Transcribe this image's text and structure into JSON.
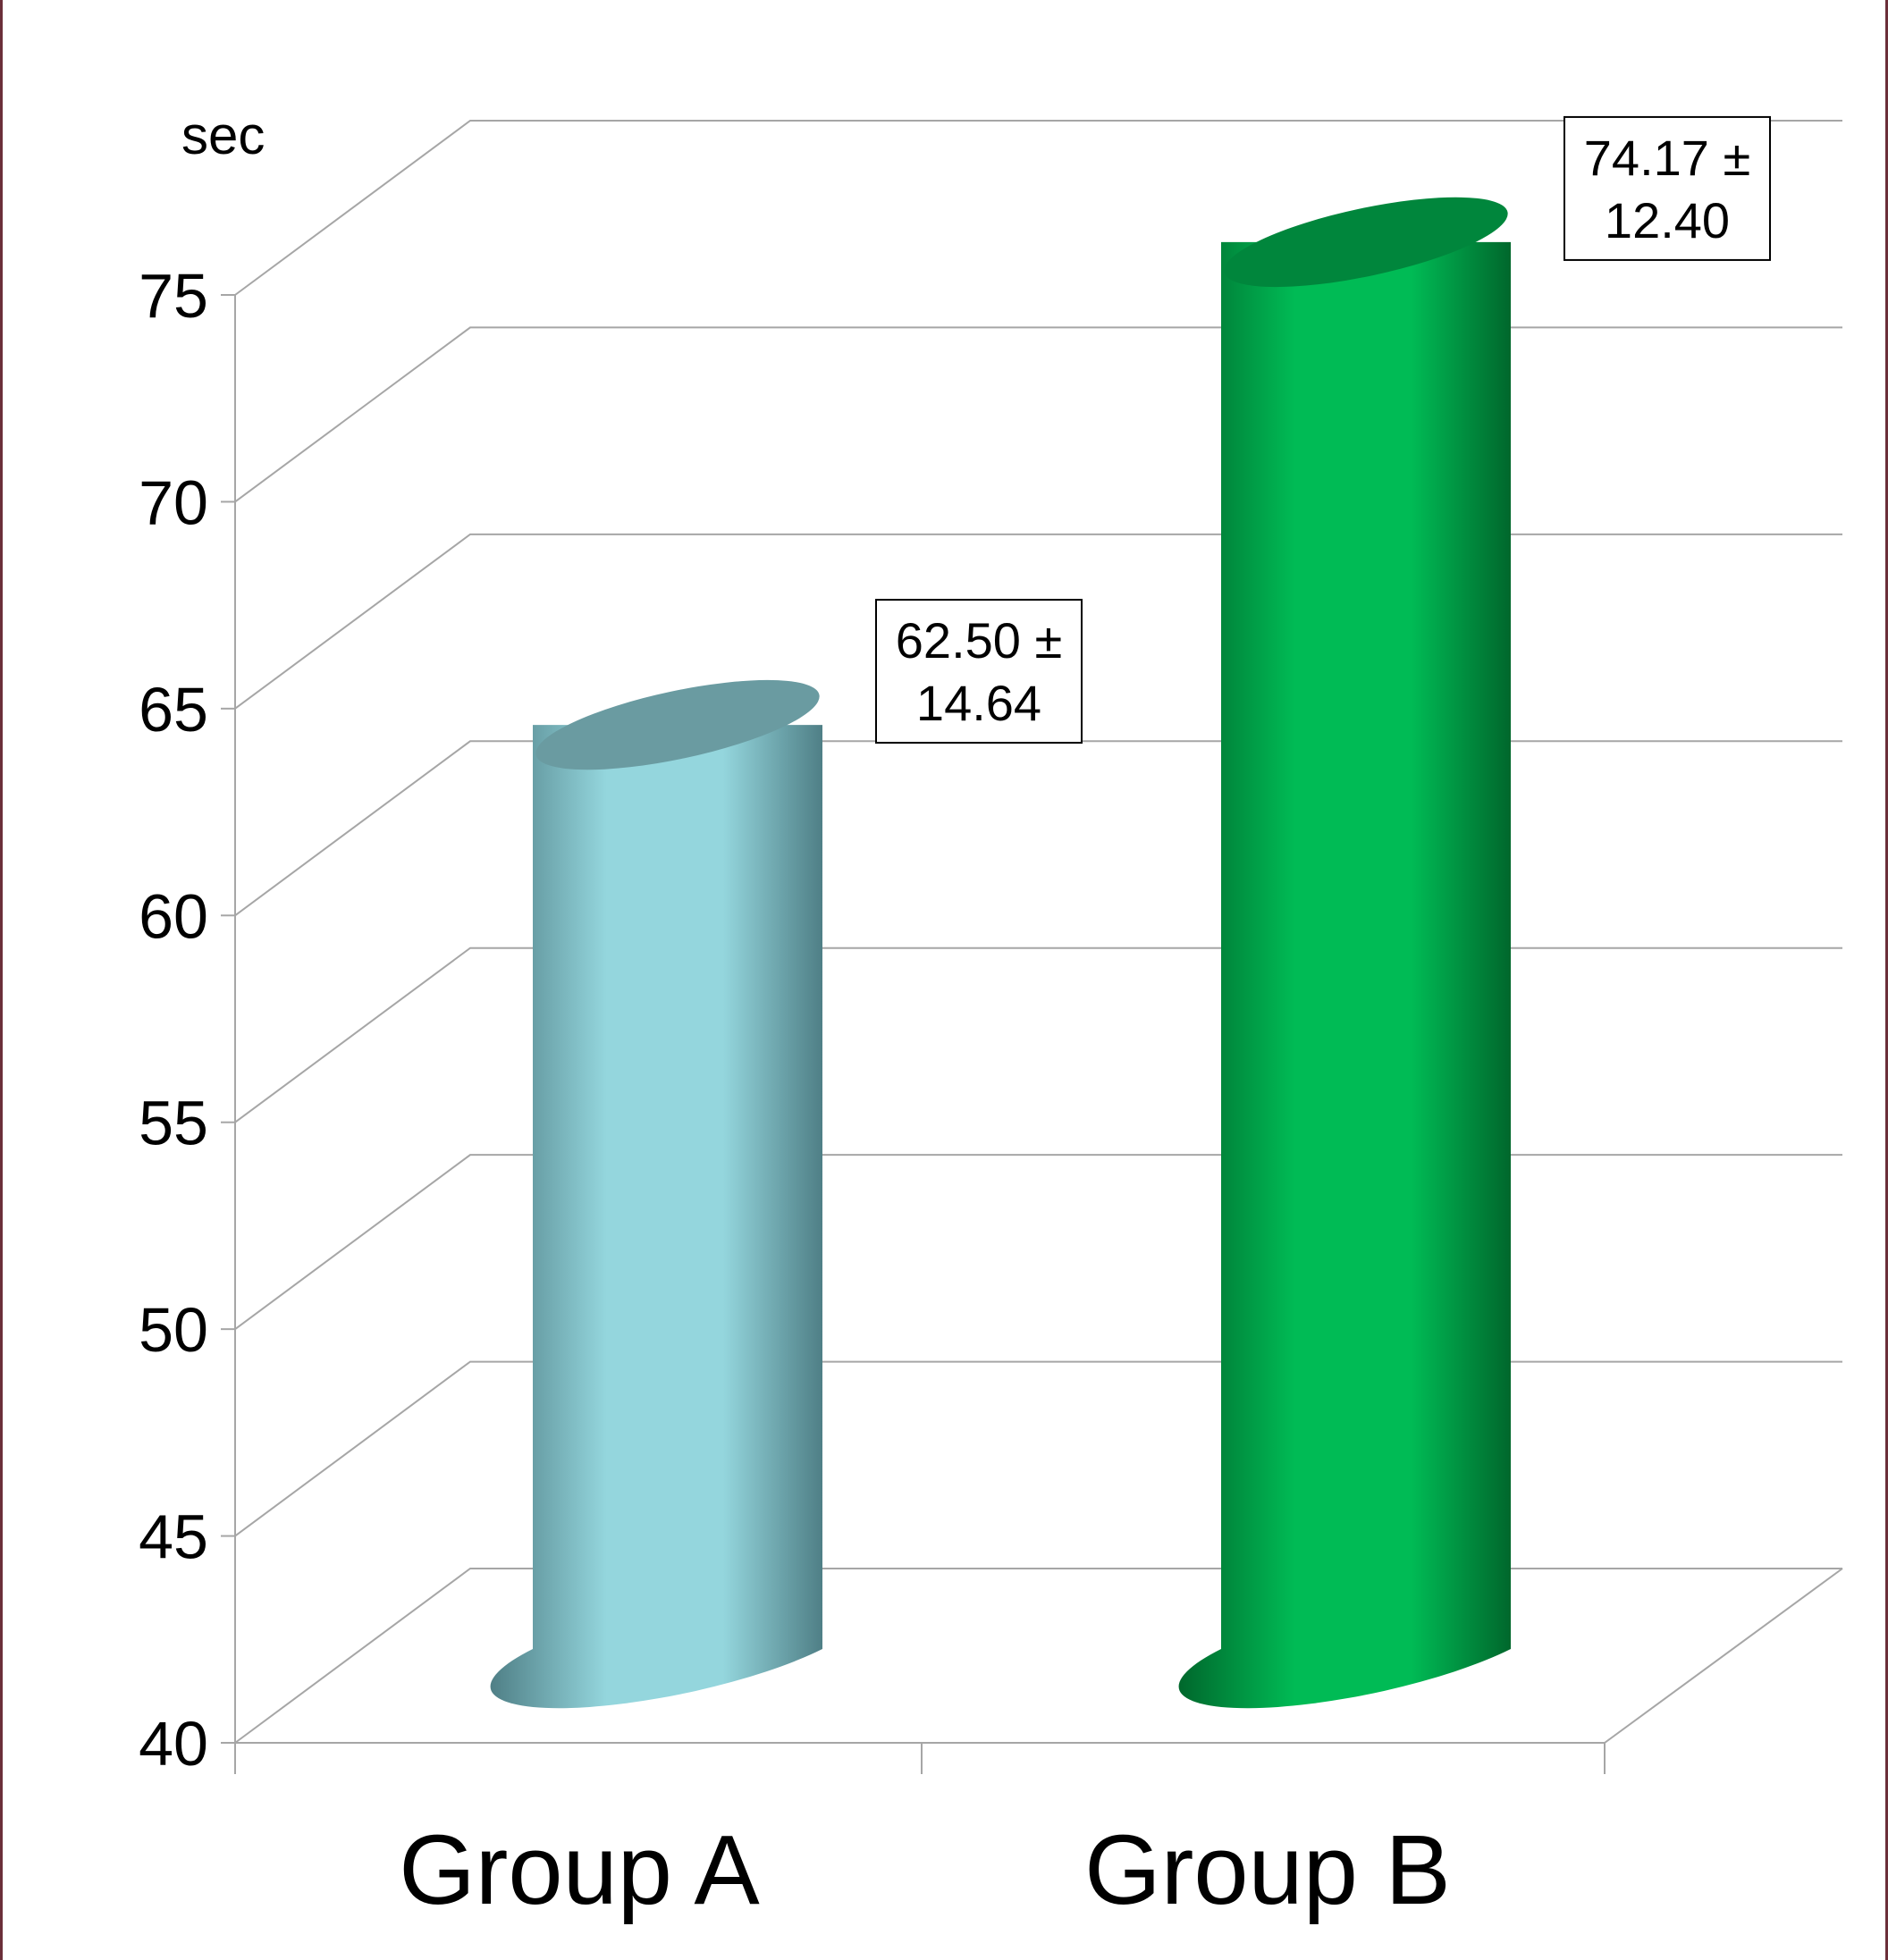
{
  "chart_data": {
    "type": "bar",
    "style": "3d-cylinder",
    "ylabel": "sec",
    "ylim": [
      40,
      75
    ],
    "yticks": [
      40,
      45,
      50,
      55,
      60,
      65,
      70,
      75
    ],
    "grid": true,
    "categories": [
      "Group A",
      "Group B"
    ],
    "values": [
      62.5,
      74.17
    ],
    "errors": [
      14.64,
      12.4
    ],
    "data_labels": [
      {
        "line1": "62.50 ±",
        "line2": "14.64"
      },
      {
        "line1": "74.17 ±",
        "line2": "12.40"
      }
    ],
    "colors": {
      "group_a": {
        "light": "#94d6dd",
        "dark": "#4f7f86",
        "top": "#6a9ba1"
      },
      "group_b": {
        "light": "#00bb55",
        "dark": "#00672c",
        "top": "#00863c"
      }
    }
  }
}
